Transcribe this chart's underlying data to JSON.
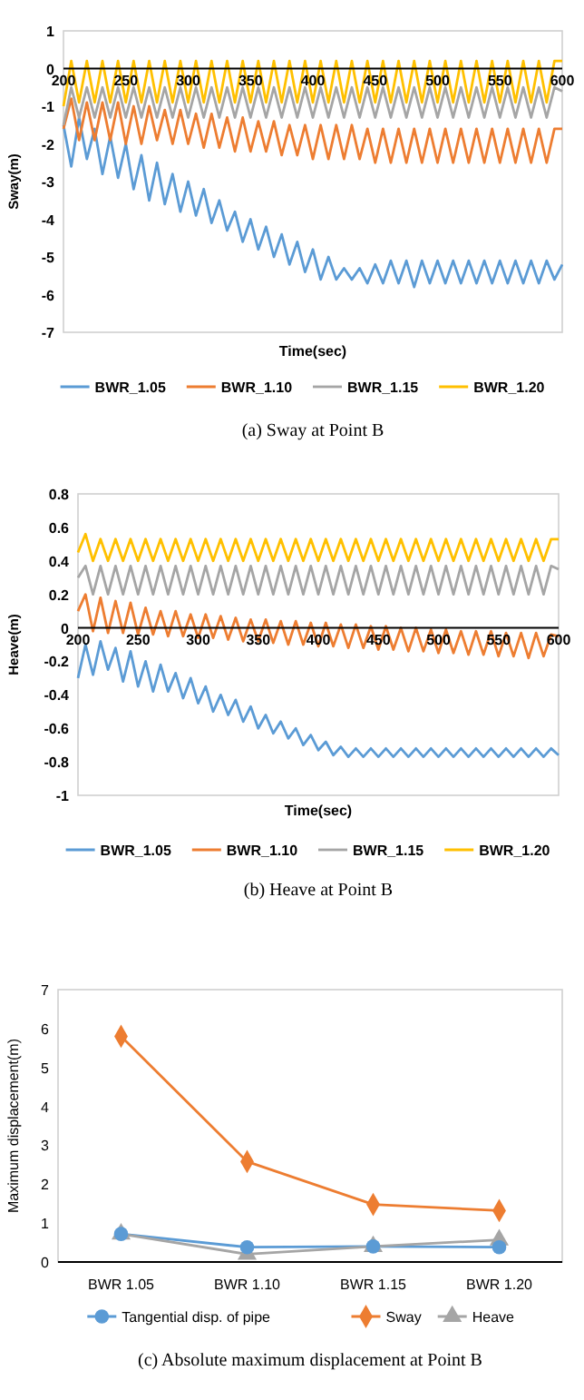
{
  "chart_data": [
    {
      "type": "line",
      "title": "(a) Sway at Point B",
      "xlabel": "Time(sec)",
      "ylabel": "Sway(m)",
      "xlim": [
        200,
        600
      ],
      "xticks": [
        200,
        250,
        300,
        350,
        400,
        450,
        500,
        550,
        600
      ],
      "ylim": [
        -7,
        1
      ],
      "yticks": [
        -7,
        -6,
        -5,
        -4,
        -3,
        -2,
        -1,
        0,
        1
      ],
      "grid": false,
      "legend": "bottom",
      "x": [
        200,
        206.25,
        212.5,
        218.75,
        225,
        231.25,
        237.5,
        243.75,
        250,
        256.25,
        262.5,
        268.75,
        275,
        281.25,
        287.5,
        293.75,
        300,
        306.25,
        312.5,
        318.75,
        325,
        331.25,
        337.5,
        343.75,
        350,
        356.25,
        362.5,
        368.75,
        375,
        381.25,
        387.5,
        393.75,
        400,
        406.25,
        412.5,
        418.75,
        425,
        431.25,
        437.5,
        443.75,
        450,
        456.25,
        462.5,
        468.75,
        475,
        481.25,
        487.5,
        493.75,
        500,
        506.25,
        512.5,
        518.75,
        525,
        531.25,
        537.5,
        543.75,
        550,
        556.25,
        562.5,
        568.75,
        575,
        581.25,
        587.5,
        593.75,
        600
      ],
      "series": [
        {
          "name": "BWR_1.05",
          "color": "#5b9bd5",
          "values": [
            -1.5,
            -2.6,
            -1.3,
            -2.4,
            -1.6,
            -2.8,
            -1.8,
            -2.9,
            -2.0,
            -3.2,
            -2.3,
            -3.5,
            -2.5,
            -3.6,
            -2.8,
            -3.8,
            -3.0,
            -3.9,
            -3.2,
            -4.1,
            -3.5,
            -4.3,
            -3.8,
            -4.6,
            -4.0,
            -4.8,
            -4.2,
            -5.0,
            -4.4,
            -5.2,
            -4.6,
            -5.4,
            -4.8,
            -5.6,
            -5.0,
            -5.6,
            -5.3,
            -5.6,
            -5.3,
            -5.7,
            -5.2,
            -5.7,
            -5.1,
            -5.7,
            -5.1,
            -5.8,
            -5.1,
            -5.7,
            -5.1,
            -5.7,
            -5.1,
            -5.7,
            -5.1,
            -5.7,
            -5.1,
            -5.7,
            -5.1,
            -5.7,
            -5.1,
            -5.7,
            -5.1,
            -5.7,
            -5.1,
            -5.6,
            -5.2
          ]
        },
        {
          "name": "BWR_1.10",
          "color": "#ed7d31",
          "values": [
            -1.6,
            -0.8,
            -1.9,
            -0.9,
            -1.9,
            -0.9,
            -1.9,
            -0.9,
            -2.0,
            -1.0,
            -2.0,
            -1.0,
            -1.9,
            -1.1,
            -2.0,
            -1.1,
            -2.0,
            -1.2,
            -2.1,
            -1.2,
            -2.1,
            -1.3,
            -2.2,
            -1.3,
            -2.2,
            -1.4,
            -2.2,
            -1.4,
            -2.3,
            -1.5,
            -2.3,
            -1.5,
            -2.4,
            -1.5,
            -2.4,
            -1.5,
            -2.4,
            -1.5,
            -2.4,
            -1.6,
            -2.5,
            -1.6,
            -2.5,
            -1.6,
            -2.5,
            -1.6,
            -2.5,
            -1.6,
            -2.5,
            -1.6,
            -2.5,
            -1.6,
            -2.5,
            -1.6,
            -2.5,
            -1.6,
            -2.5,
            -1.6,
            -2.5,
            -1.6,
            -2.5,
            -1.6,
            -2.5,
            -1.6,
            -1.6
          ]
        },
        {
          "name": "BWR_1.15",
          "color": "#a5a5a5",
          "values": [
            -1.5,
            -0.5,
            -1.3,
            -0.5,
            -1.3,
            -0.5,
            -1.3,
            -0.5,
            -1.3,
            -0.5,
            -1.3,
            -0.5,
            -1.3,
            -0.5,
            -1.3,
            -0.5,
            -1.3,
            -0.5,
            -1.3,
            -0.5,
            -1.3,
            -0.5,
            -1.3,
            -0.5,
            -1.3,
            -0.5,
            -1.3,
            -0.5,
            -1.3,
            -0.5,
            -1.3,
            -0.5,
            -1.3,
            -0.5,
            -1.3,
            -0.5,
            -1.3,
            -0.5,
            -1.3,
            -0.5,
            -1.3,
            -0.5,
            -1.3,
            -0.5,
            -1.3,
            -0.5,
            -1.3,
            -0.5,
            -1.3,
            -0.5,
            -1.3,
            -0.5,
            -1.3,
            -0.5,
            -1.3,
            -0.5,
            -1.3,
            -0.5,
            -1.3,
            -0.5,
            -1.3,
            -0.5,
            -1.3,
            -0.5,
            -0.6
          ]
        },
        {
          "name": "BWR_1.20",
          "color": "#ffc000",
          "values": [
            -1.0,
            0.2,
            -0.9,
            0.2,
            -0.9,
            0.2,
            -0.9,
            0.2,
            -0.9,
            0.2,
            -0.9,
            0.2,
            -0.9,
            0.2,
            -0.9,
            0.2,
            -0.9,
            0.2,
            -0.9,
            0.2,
            -0.9,
            0.2,
            -0.9,
            0.2,
            -0.9,
            0.2,
            -0.9,
            0.2,
            -0.9,
            0.2,
            -0.9,
            0.2,
            -0.9,
            0.2,
            -0.9,
            0.2,
            -0.9,
            0.2,
            -0.9,
            0.2,
            -0.9,
            0.2,
            -0.9,
            0.2,
            -0.9,
            0.2,
            -0.9,
            0.2,
            -0.9,
            0.2,
            -0.9,
            0.2,
            -0.9,
            0.2,
            -0.9,
            0.2,
            -0.9,
            0.2,
            -0.9,
            0.2,
            -0.9,
            0.2,
            -0.9,
            0.2,
            0.2
          ]
        }
      ]
    },
    {
      "type": "line",
      "title": "(b) Heave at Point B",
      "xlabel": "Time(sec)",
      "ylabel": "Heave(m)",
      "xlim": [
        200,
        600
      ],
      "xticks": [
        200,
        250,
        300,
        350,
        400,
        450,
        500,
        550,
        600
      ],
      "ylim": [
        -1,
        0.8
      ],
      "yticks": [
        -1,
        -0.8,
        -0.6,
        -0.4,
        -0.2,
        0,
        0.2,
        0.4,
        0.6,
        0.8
      ],
      "grid": false,
      "legend": "bottom",
      "x": [
        200,
        206.25,
        212.5,
        218.75,
        225,
        231.25,
        237.5,
        243.75,
        250,
        256.25,
        262.5,
        268.75,
        275,
        281.25,
        287.5,
        293.75,
        300,
        306.25,
        312.5,
        318.75,
        325,
        331.25,
        337.5,
        343.75,
        350,
        356.25,
        362.5,
        368.75,
        375,
        381.25,
        387.5,
        393.75,
        400,
        406.25,
        412.5,
        418.75,
        425,
        431.25,
        437.5,
        443.75,
        450,
        456.25,
        462.5,
        468.75,
        475,
        481.25,
        487.5,
        493.75,
        500,
        506.25,
        512.5,
        518.75,
        525,
        531.25,
        537.5,
        543.75,
        550,
        556.25,
        562.5,
        568.75,
        575,
        581.25,
        587.5,
        593.75,
        600
      ],
      "series": [
        {
          "name": "BWR_1.05",
          "color": "#5b9bd5",
          "values": [
            -0.3,
            -0.1,
            -0.28,
            -0.08,
            -0.25,
            -0.12,
            -0.32,
            -0.14,
            -0.35,
            -0.2,
            -0.38,
            -0.22,
            -0.38,
            -0.27,
            -0.42,
            -0.3,
            -0.45,
            -0.35,
            -0.5,
            -0.4,
            -0.52,
            -0.43,
            -0.56,
            -0.47,
            -0.6,
            -0.52,
            -0.63,
            -0.56,
            -0.66,
            -0.6,
            -0.7,
            -0.64,
            -0.73,
            -0.68,
            -0.76,
            -0.71,
            -0.77,
            -0.72,
            -0.77,
            -0.72,
            -0.77,
            -0.72,
            -0.77,
            -0.72,
            -0.77,
            -0.72,
            -0.77,
            -0.72,
            -0.77,
            -0.72,
            -0.77,
            -0.72,
            -0.77,
            -0.72,
            -0.77,
            -0.72,
            -0.77,
            -0.72,
            -0.77,
            -0.72,
            -0.77,
            -0.72,
            -0.77,
            -0.72,
            -0.76
          ]
        },
        {
          "name": "BWR_1.10",
          "color": "#ed7d31",
          "values": [
            0.1,
            0.2,
            -0.02,
            0.18,
            -0.03,
            0.16,
            -0.03,
            0.15,
            -0.04,
            0.12,
            -0.04,
            0.1,
            -0.05,
            0.1,
            -0.05,
            0.08,
            -0.06,
            0.08,
            -0.06,
            0.07,
            -0.07,
            0.06,
            -0.08,
            0.05,
            -0.08,
            0.05,
            -0.09,
            0.04,
            -0.1,
            0.04,
            -0.1,
            0.03,
            -0.11,
            0.03,
            -0.11,
            0.02,
            -0.12,
            0.02,
            -0.12,
            0.01,
            -0.13,
            0.01,
            -0.13,
            0,
            -0.14,
            0,
            -0.14,
            -0.01,
            -0.15,
            -0.01,
            -0.15,
            -0.02,
            -0.16,
            -0.02,
            -0.16,
            -0.02,
            -0.17,
            -0.03,
            -0.17,
            -0.03,
            -0.18,
            -0.03,
            -0.17,
            -0.04,
            -0.05
          ]
        },
        {
          "name": "BWR_1.15",
          "color": "#a5a5a5",
          "values": [
            0.3,
            0.37,
            0.2,
            0.37,
            0.2,
            0.37,
            0.2,
            0.37,
            0.2,
            0.37,
            0.2,
            0.37,
            0.2,
            0.37,
            0.2,
            0.37,
            0.2,
            0.37,
            0.2,
            0.37,
            0.2,
            0.37,
            0.2,
            0.37,
            0.2,
            0.37,
            0.2,
            0.37,
            0.2,
            0.37,
            0.2,
            0.37,
            0.2,
            0.37,
            0.2,
            0.37,
            0.2,
            0.37,
            0.2,
            0.37,
            0.2,
            0.37,
            0.2,
            0.37,
            0.2,
            0.37,
            0.2,
            0.37,
            0.2,
            0.37,
            0.2,
            0.37,
            0.2,
            0.37,
            0.2,
            0.37,
            0.2,
            0.37,
            0.2,
            0.37,
            0.2,
            0.37,
            0.2,
            0.37,
            0.35
          ]
        },
        {
          "name": "BWR_1.20",
          "color": "#ffc000",
          "values": [
            0.45,
            0.56,
            0.4,
            0.53,
            0.4,
            0.53,
            0.4,
            0.53,
            0.4,
            0.53,
            0.4,
            0.53,
            0.4,
            0.53,
            0.4,
            0.53,
            0.4,
            0.53,
            0.4,
            0.53,
            0.4,
            0.53,
            0.4,
            0.53,
            0.4,
            0.53,
            0.4,
            0.53,
            0.4,
            0.53,
            0.4,
            0.53,
            0.4,
            0.53,
            0.4,
            0.53,
            0.4,
            0.53,
            0.4,
            0.53,
            0.4,
            0.53,
            0.4,
            0.53,
            0.4,
            0.53,
            0.4,
            0.53,
            0.4,
            0.53,
            0.4,
            0.53,
            0.4,
            0.53,
            0.4,
            0.53,
            0.4,
            0.53,
            0.4,
            0.53,
            0.4,
            0.53,
            0.4,
            0.53,
            0.53
          ]
        }
      ]
    },
    {
      "type": "line",
      "title": "(c) Absolute maximum displacement at Point B",
      "ylabel": "Maximum displacement(m)",
      "categories": [
        "BWR 1.05",
        "BWR 1.10",
        "BWR 1.15",
        "BWR 1.20"
      ],
      "ylim": [
        0,
        7
      ],
      "yticks": [
        0,
        1,
        2,
        3,
        4,
        5,
        6,
        7
      ],
      "grid": false,
      "legend": "bottom",
      "series": [
        {
          "name": "Tangential disp. of pipe",
          "color": "#5b9bd5",
          "marker": "circle",
          "values": [
            0.72,
            0.38,
            0.4,
            0.38
          ]
        },
        {
          "name": "Sway",
          "color": "#ed7d31",
          "marker": "diamond",
          "values": [
            5.8,
            2.58,
            1.48,
            1.32
          ]
        },
        {
          "name": "Heave",
          "color": "#a5a5a5",
          "marker": "triangle",
          "values": [
            0.72,
            0.2,
            0.4,
            0.57
          ]
        }
      ]
    }
  ]
}
